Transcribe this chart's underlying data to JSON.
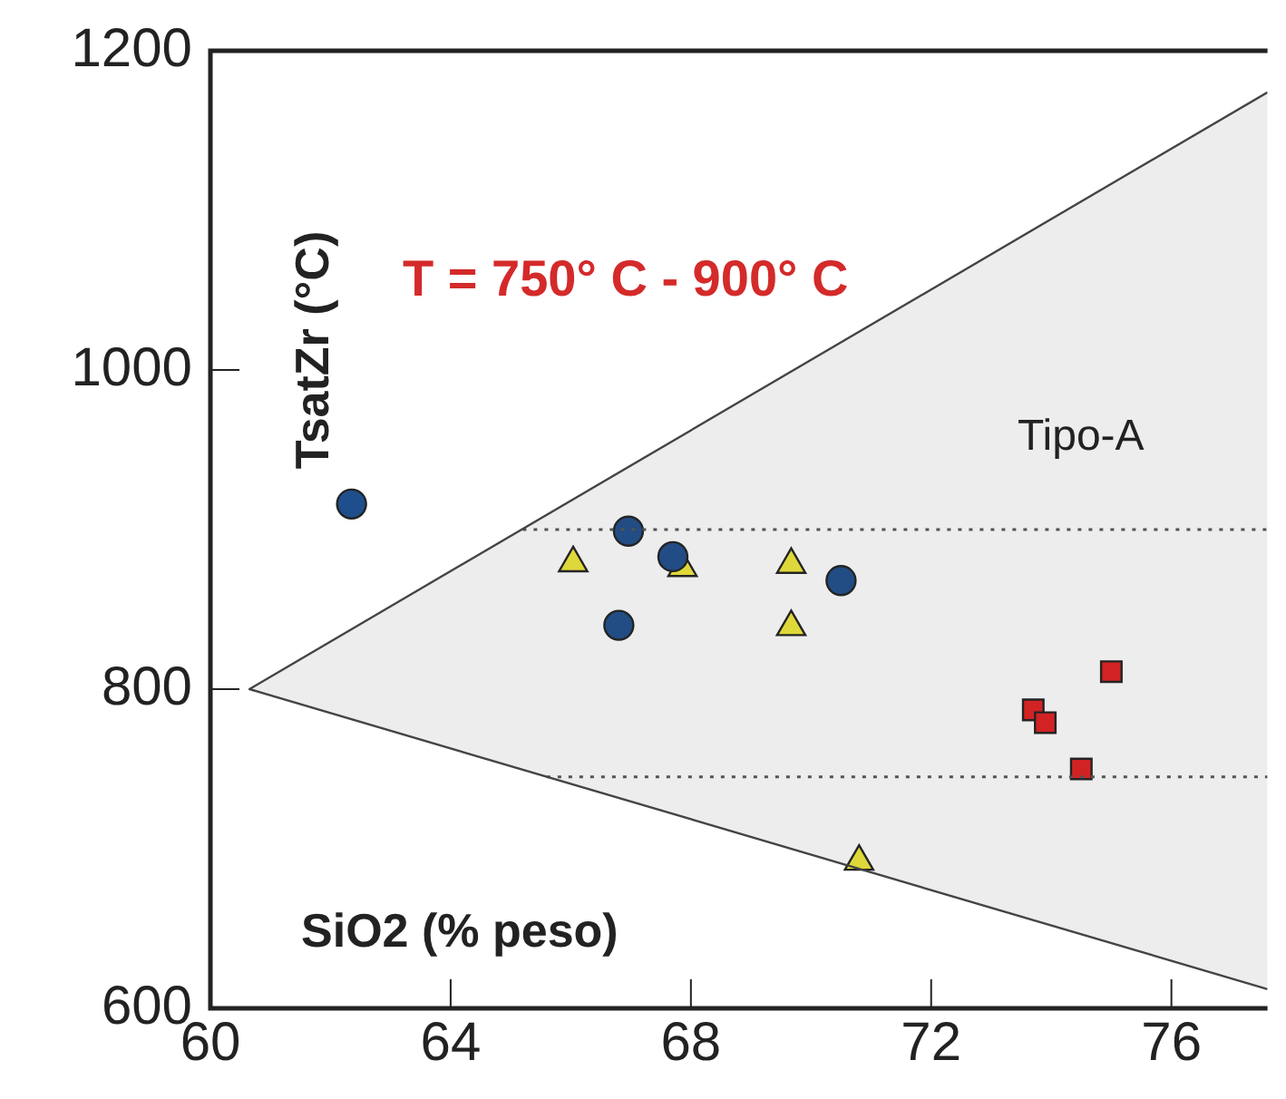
{
  "chart_data": {
    "type": "scatter",
    "xlabel": "SiO2 (% peso)",
    "ylabel": "TsatZr (°C)",
    "annotations": [
      "T = 750° C - 900° C",
      "Tipo-A"
    ],
    "xlim": [
      60,
      77.6
    ],
    "ylim": [
      600,
      1200
    ],
    "xticks": [
      60,
      64,
      68,
      72,
      76
    ],
    "yticks": [
      600,
      800,
      1000,
      1200
    ],
    "grid": false,
    "legend": false,
    "series": [
      {
        "type": "area",
        "color": "#444444",
        "x": [
          77.6,
          60.65,
          77.6
        ],
        "values": [
          1174,
          800,
          612
        ],
        "marker": "none",
        "line_style": "solid"
      },
      {
        "type": "line",
        "color": "#555555",
        "x": [
          65.2,
          77.6
        ],
        "values": [
          900,
          900
        ],
        "marker": "none",
        "line_style": "dotted"
      },
      {
        "type": "line",
        "color": "#555555",
        "x": [
          65.6,
          77.6
        ],
        "values": [
          745,
          745
        ],
        "marker": "none",
        "line_style": "dotted"
      },
      {
        "color": "#1f4e8c",
        "marker": "circle",
        "x": [
          62.35,
          66.96,
          67.7,
          70.5,
          66.8
        ],
        "values": [
          916,
          899,
          883,
          868,
          840
        ]
      },
      {
        "color": "#f0e83a",
        "marker": "triangle",
        "x": [
          66.04,
          67.86,
          69.67,
          69.67,
          70.8
        ],
        "values": [
          879,
          876,
          878,
          839,
          692
        ]
      },
      {
        "color": "#e02020",
        "marker": "square",
        "x": [
          75.0,
          73.7,
          73.9,
          74.5
        ],
        "values": [
          811,
          787,
          779,
          750
        ]
      }
    ]
  }
}
